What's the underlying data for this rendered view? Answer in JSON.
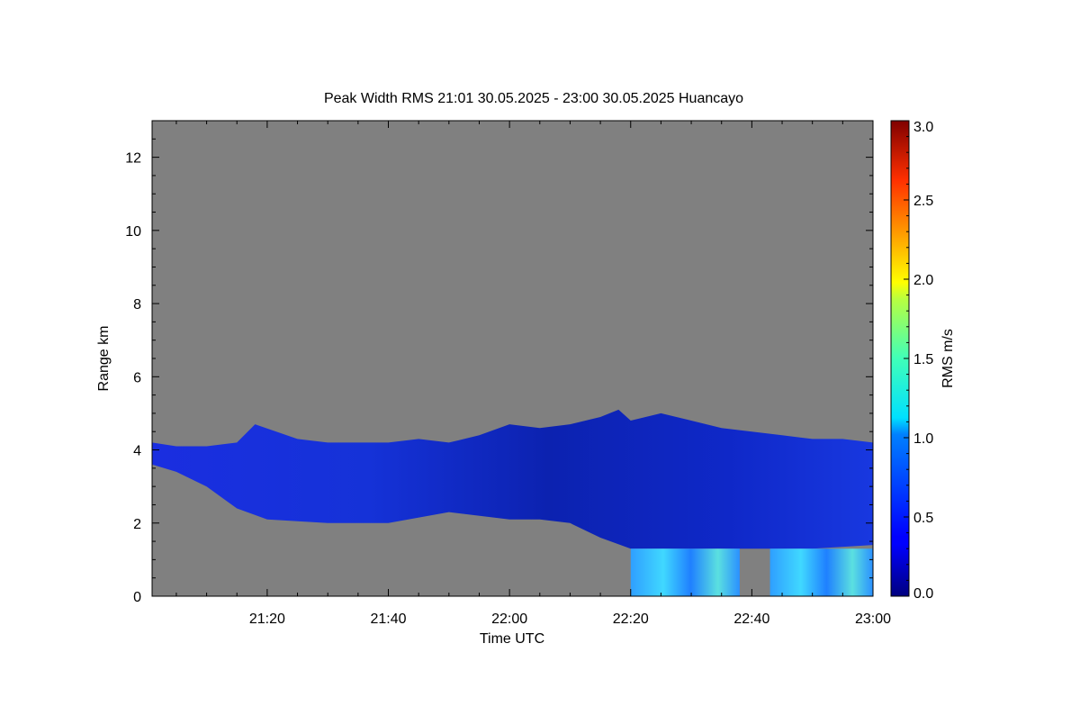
{
  "chart_data": {
    "type": "heatmap",
    "title": "Peak Width RMS   21:01 30.05.2025 - 23:00 30.05.2025 Huancayo",
    "xlabel": "Time UTC",
    "ylabel": "Range km",
    "x_range": [
      "21:01",
      "23:00"
    ],
    "x_ticks": [
      "21:20",
      "21:40",
      "22:00",
      "22:20",
      "22:40",
      "23:00"
    ],
    "ylim": [
      0,
      13
    ],
    "y_ticks": [
      "0",
      "2",
      "4",
      "6",
      "8",
      "10",
      "12"
    ],
    "no_data_color": "#808080",
    "colorbar": {
      "label": "RMS m/s",
      "range": [
        0.0,
        3.0
      ],
      "ticks": [
        "0.0",
        "0.5",
        "1.0",
        "1.5",
        "2.0",
        "2.5",
        "3.0"
      ],
      "colormap": "jet"
    },
    "echo_layer": {
      "description_values_rms_ms": "mostly 0.2-0.5 m/s; 0.7-1.6 m/s in low-level echoes 22:20-23:00 below 1.4 km",
      "top_km": [
        [
          "21:01",
          4.2
        ],
        [
          "21:05",
          4.1
        ],
        [
          "21:10",
          4.1
        ],
        [
          "21:15",
          4.2
        ],
        [
          "21:18",
          4.7
        ],
        [
          "21:25",
          4.3
        ],
        [
          "21:30",
          4.2
        ],
        [
          "21:40",
          4.2
        ],
        [
          "21:45",
          4.3
        ],
        [
          "21:50",
          4.2
        ],
        [
          "21:55",
          4.4
        ],
        [
          "22:00",
          4.7
        ],
        [
          "22:05",
          4.6
        ],
        [
          "22:10",
          4.7
        ],
        [
          "22:15",
          4.9
        ],
        [
          "22:18",
          5.1
        ],
        [
          "22:20",
          4.8
        ],
        [
          "22:25",
          5.0
        ],
        [
          "22:30",
          4.8
        ],
        [
          "22:35",
          4.6
        ],
        [
          "22:40",
          4.5
        ],
        [
          "22:45",
          4.4
        ],
        [
          "22:50",
          4.3
        ],
        [
          "22:55",
          4.3
        ],
        [
          "23:00",
          4.2
        ]
      ],
      "base_km": [
        [
          "21:01",
          3.6
        ],
        [
          "21:05",
          3.4
        ],
        [
          "21:10",
          3.0
        ],
        [
          "21:15",
          2.4
        ],
        [
          "21:20",
          2.1
        ],
        [
          "21:30",
          2.0
        ],
        [
          "21:40",
          2.0
        ],
        [
          "21:50",
          2.3
        ],
        [
          "22:00",
          2.1
        ],
        [
          "22:05",
          2.1
        ],
        [
          "22:10",
          2.0
        ],
        [
          "22:15",
          1.6
        ],
        [
          "22:20",
          1.3
        ],
        [
          "22:30",
          1.3
        ],
        [
          "22:40",
          1.3
        ],
        [
          "22:50",
          1.3
        ],
        [
          "23:00",
          1.4
        ]
      ],
      "low_echo_intervals": [
        {
          "start": "22:20",
          "end": "22:38",
          "top_km": 1.3,
          "bottom_km": 0.0
        },
        {
          "start": "22:43",
          "end": "23:00",
          "top_km": 1.3,
          "bottom_km": 0.0
        }
      ]
    }
  }
}
